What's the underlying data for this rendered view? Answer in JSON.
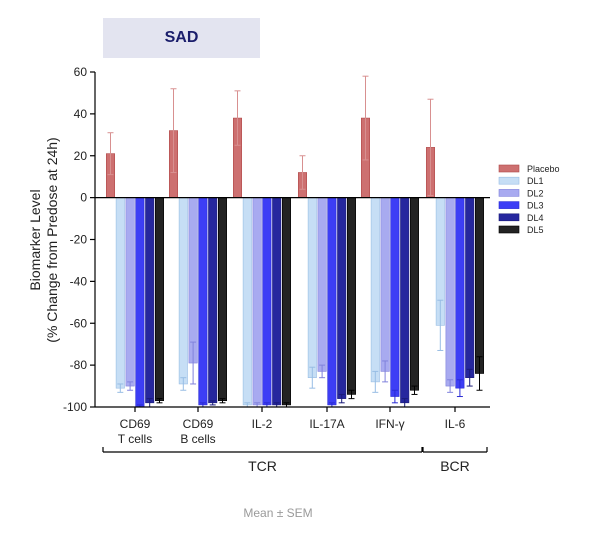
{
  "chart_data": {
    "type": "bar",
    "title": "SAD",
    "ylabel_line1": "Biomarker Level",
    "ylabel_line2": "(% Change from Predose at 24h)",
    "ylim": [
      -100,
      60
    ],
    "yticks": [
      60,
      40,
      20,
      0,
      -20,
      -40,
      -60,
      -80,
      -100
    ],
    "ytick_labels": [
      "60",
      "40",
      "20",
      "0",
      "-20",
      "-40",
      "-60",
      "-80",
      "-100"
    ],
    "categories": [
      {
        "line1": "CD69",
        "line2": "T cells"
      },
      {
        "line1": "CD69",
        "line2": "B cells"
      },
      {
        "line1": "IL-2",
        "line2": ""
      },
      {
        "line1": "IL-17A",
        "line2": ""
      },
      {
        "line1": "IFN-γ",
        "line2": ""
      },
      {
        "line1": "IL-6",
        "line2": ""
      }
    ],
    "groups": [
      {
        "label": "TCR",
        "from": 0,
        "to": 4
      },
      {
        "label": "BCR",
        "from": 5,
        "to": 5
      }
    ],
    "series": [
      {
        "name": "Placebo",
        "color": "#cd7070",
        "border": "#b04848",
        "errcolor": "#d89090",
        "values": [
          21,
          32,
          38,
          12,
          38,
          24
        ],
        "err": [
          10,
          20,
          13,
          8,
          20,
          23
        ]
      },
      {
        "name": "DL1",
        "color": "#c6def5",
        "border": "#98bde4",
        "errcolor": "#98bde4",
        "values": [
          -91,
          -89,
          -99,
          -86,
          -88,
          -61
        ],
        "err": [
          2,
          3,
          1,
          5,
          5,
          12
        ]
      },
      {
        "name": "DL2",
        "color": "#a8aaf0",
        "border": "#8082dc",
        "errcolor": "#8082dc",
        "values": [
          -90,
          -79,
          -99,
          -83,
          -83,
          -90
        ],
        "err": [
          2,
          10,
          1,
          3,
          5,
          3
        ]
      },
      {
        "name": "DL3",
        "color": "#3d3ef5",
        "border": "#2a2bd4",
        "errcolor": "#2a2bd4",
        "values": [
          -100,
          -99,
          -99,
          -99,
          -95,
          -91
        ],
        "err": [
          1,
          1,
          1,
          1,
          3,
          4
        ]
      },
      {
        "name": "DL4",
        "color": "#26279e",
        "border": "#1a1b7a",
        "errcolor": "#1a1b7a",
        "values": [
          -98,
          -98,
          -99,
          -96,
          -98,
          -86
        ],
        "err": [
          2,
          1,
          1,
          2,
          2,
          4
        ]
      },
      {
        "name": "DL5",
        "color": "#232323",
        "border": "#000000",
        "errcolor": "#000000",
        "values": [
          -97,
          -97,
          -99,
          -94,
          -92,
          -84
        ],
        "err": [
          1,
          1,
          1,
          2,
          2,
          8
        ]
      }
    ],
    "legend_position": "right",
    "grid": false
  },
  "footnote": "Mean ± SEM"
}
